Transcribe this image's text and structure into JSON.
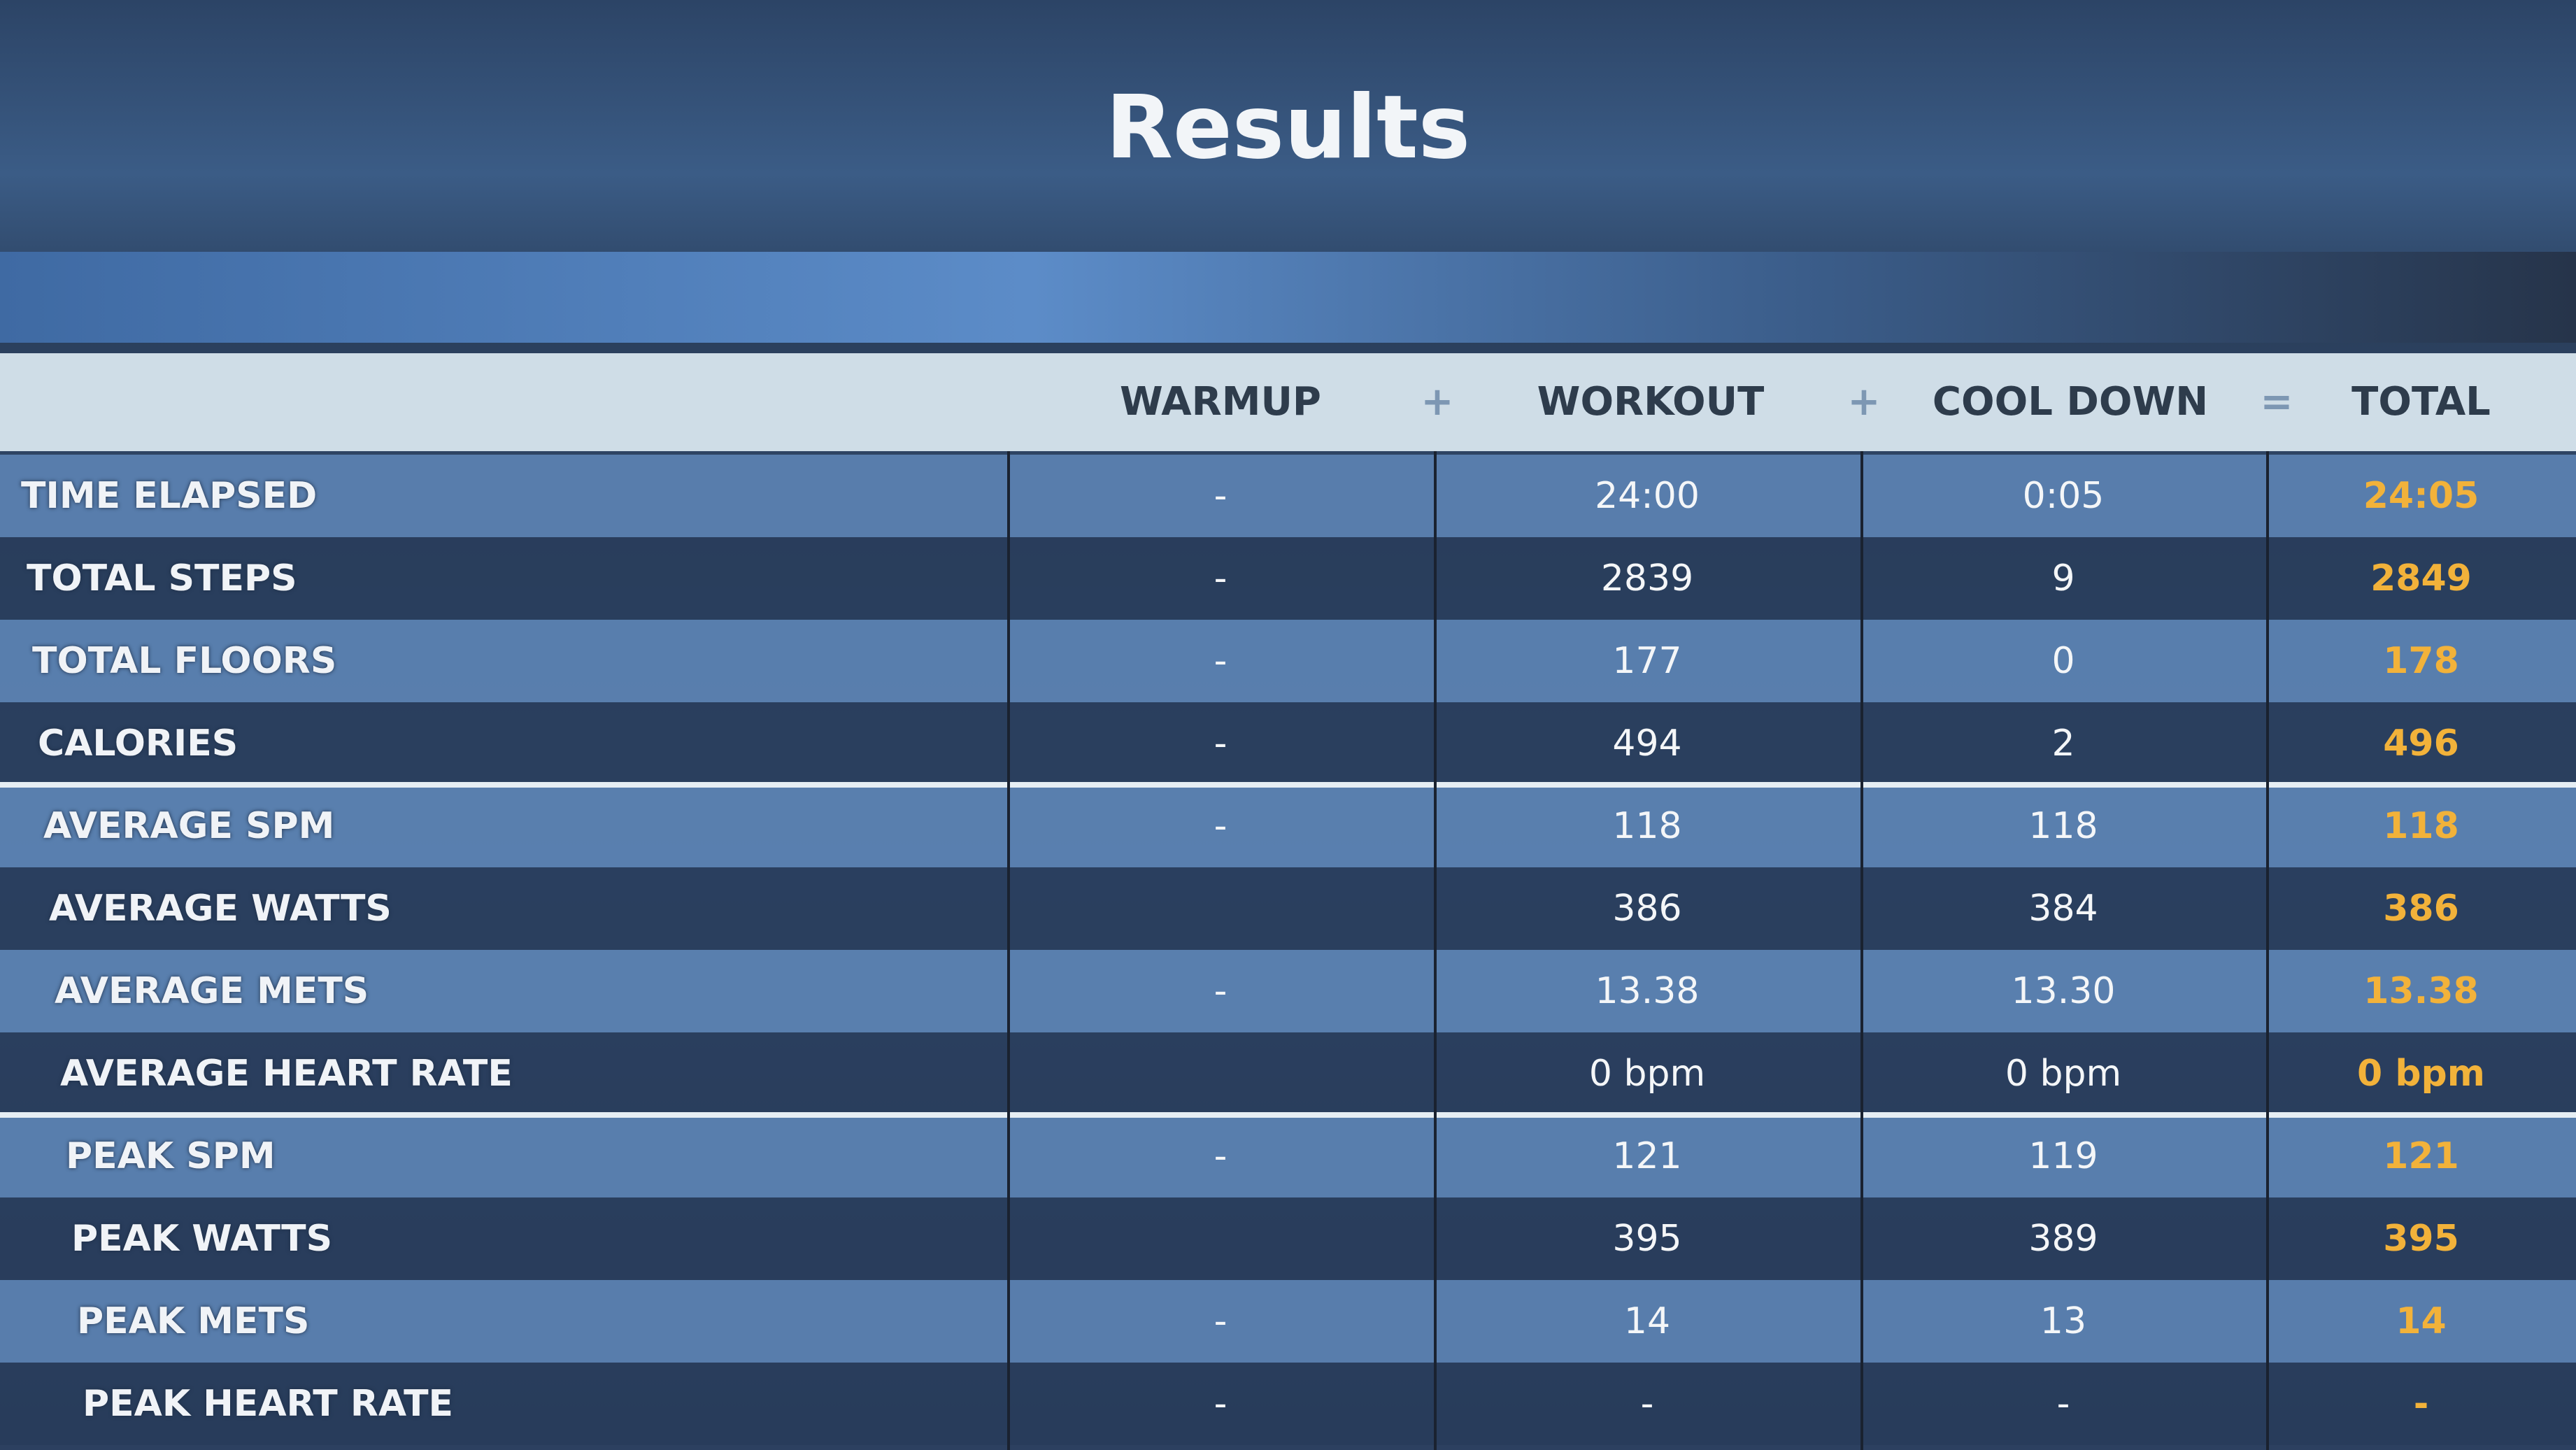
{
  "header": {
    "title": "Results"
  },
  "table": {
    "columns": [
      "WARMUP",
      "+",
      "WORKOUT",
      "+",
      "COOL DOWN",
      "=",
      "TOTAL"
    ],
    "rows": [
      [
        "TIME ELAPSED",
        "-",
        "24:00",
        "0:05",
        "24:05"
      ],
      [
        "TOTAL STEPS",
        "-",
        "2839",
        "9",
        "2849"
      ],
      [
        "TOTAL FLOORS",
        "-",
        "177",
        "0",
        "178"
      ],
      [
        "CALORIES",
        "-",
        "494",
        "2",
        "496"
      ],
      [
        "AVERAGE SPM",
        "-",
        "118",
        "118",
        "118"
      ],
      [
        "AVERAGE WATTS",
        null,
        "386",
        "384",
        "386"
      ],
      [
        "AVERAGE METS",
        "-",
        "13.38",
        "13.30",
        "13.38"
      ],
      [
        "AVERAGE HEART RATE",
        null,
        "0 bpm",
        "0 bpm",
        "0 bpm"
      ],
      [
        "PEAK SPM",
        "-",
        "121",
        "119",
        "121"
      ],
      [
        "PEAK WATTS",
        null,
        "395",
        "389",
        "395"
      ],
      [
        "PEAK METS",
        "-",
        "14",
        "13",
        "14"
      ],
      [
        "PEAK HEART RATE",
        "-",
        "-",
        "-",
        "-"
      ]
    ]
  }
}
